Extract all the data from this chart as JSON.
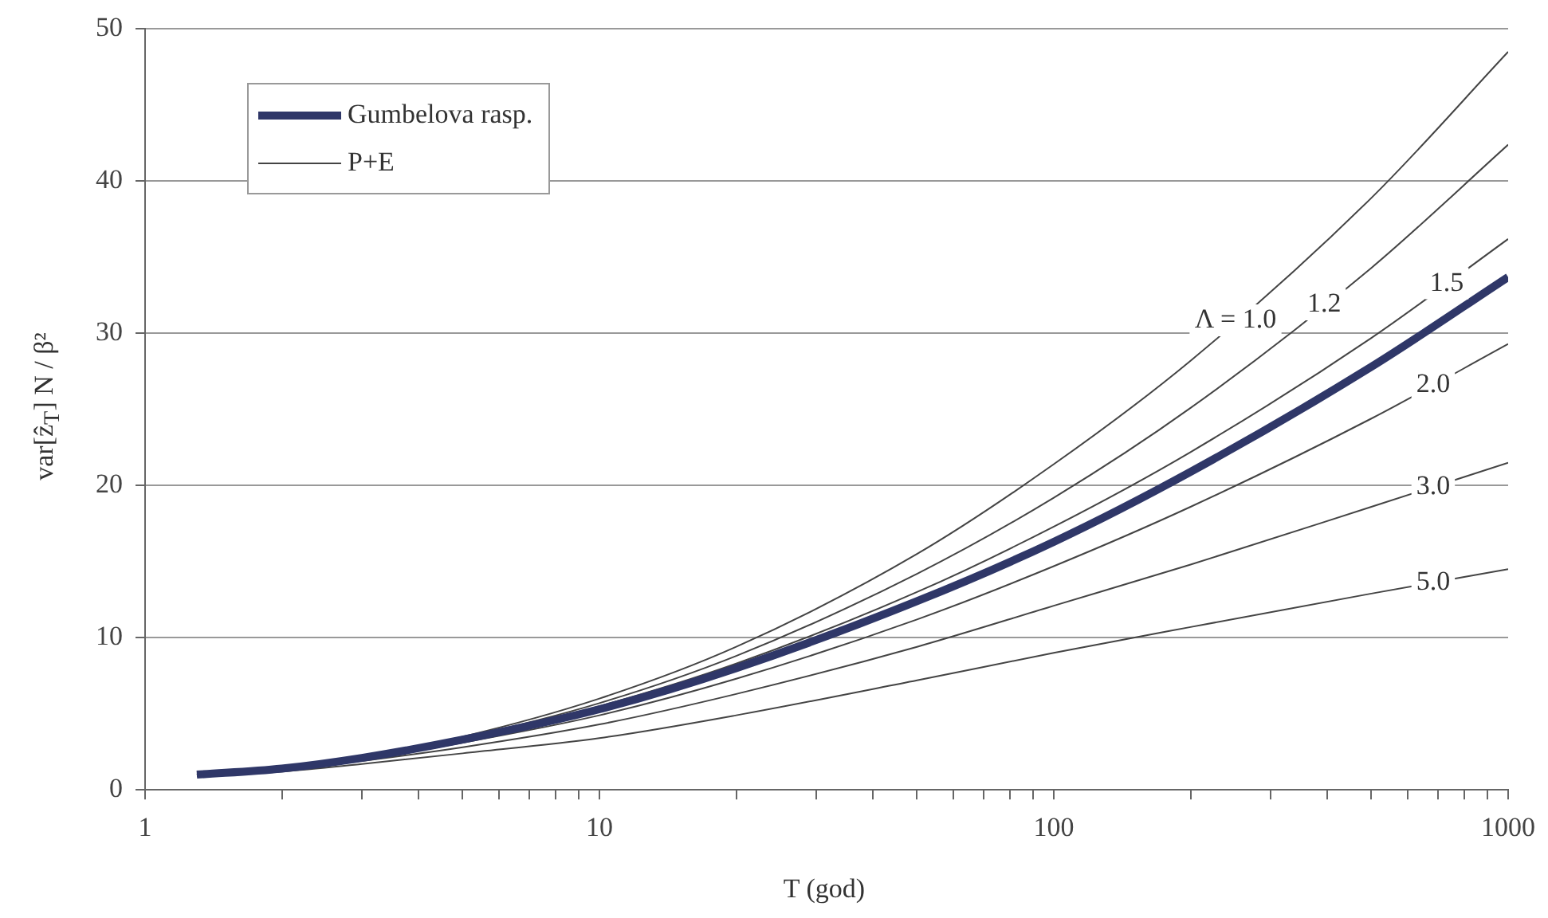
{
  "chart_data": {
    "type": "line",
    "xlabel": "T (god)",
    "ylabel": "var[ẑ$_{T}$] N / β²",
    "log": "x",
    "xlim": [
      1,
      1000
    ],
    "ylim": [
      0,
      50
    ],
    "xticks": [
      1,
      {
        "value": 2,
        "label": null
      },
      {
        "value": 3,
        "label": null
      },
      {
        "value": 4,
        "label": null
      },
      {
        "value": 5,
        "label": null
      },
      {
        "value": 6,
        "label": null
      },
      {
        "value": 7,
        "label": null
      },
      {
        "value": 8,
        "label": null
      },
      {
        "value": 9,
        "label": null
      },
      10,
      {
        "value": 20,
        "label": null
      },
      {
        "value": 30,
        "label": null
      },
      {
        "value": 40,
        "label": null
      },
      {
        "value": 50,
        "label": null
      },
      {
        "value": 60,
        "label": null
      },
      {
        "value": 70,
        "label": null
      },
      {
        "value": 80,
        "label": null
      },
      {
        "value": 90,
        "label": null
      },
      100,
      {
        "value": 200,
        "label": null
      },
      {
        "value": 300,
        "label": null
      },
      {
        "value": 400,
        "label": null
      },
      {
        "value": 500,
        "label": null
      },
      {
        "value": 600,
        "label": null
      },
      {
        "value": 700,
        "label": null
      },
      {
        "value": 800,
        "label": null
      },
      {
        "value": 900,
        "label": null
      },
      1000
    ],
    "yticks": [
      0,
      10,
      20,
      30,
      40,
      50
    ],
    "grid": "y",
    "legend": "top left",
    "marker": "none",
    "line_style": "solid",
    "x": [
      1.3,
      2,
      3,
      5,
      10,
      20,
      50,
      100,
      200,
      500,
      1000
    ],
    "series": [
      {
        "name": "Gumbelova rasp.",
        "color": "#2f3768",
        "values": [
          1.0,
          1.4,
          2.1,
          3.3,
          5.3,
          8.0,
          12.4,
          16.3,
          20.9,
          27.8,
          33.7
        ]
      },
      {
        "name": "P+E",
        "color": "#444444",
        "values": [
          1.0,
          1.4,
          2.2,
          3.5,
          6.0,
          9.4,
          15.5,
          21.4,
          28.2,
          38.9,
          48.5
        ]
      },
      {
        "color": "#444444",
        "values": [
          1.0,
          1.4,
          2.1,
          3.4,
          5.7,
          8.8,
          14.2,
          19.2,
          25.1,
          34.3,
          42.4
        ]
      },
      {
        "color": "#444444",
        "values": [
          1.0,
          1.4,
          2.1,
          3.3,
          5.5,
          8.3,
          13.0,
          17.3,
          22.2,
          29.7,
          36.2
        ]
      },
      {
        "color": "#444444",
        "values": [
          1.0,
          1.4,
          2.0,
          3.1,
          4.9,
          7.3,
          11.2,
          14.7,
          18.6,
          24.4,
          29.3
        ]
      },
      {
        "color": "#444444",
        "values": [
          1.0,
          1.3,
          1.9,
          2.8,
          4.3,
          6.3,
          9.4,
          12.1,
          14.8,
          18.6,
          21.5
        ]
      },
      {
        "color": "#444444",
        "values": [
          0.9,
          1.2,
          1.7,
          2.4,
          3.4,
          4.9,
          7.2,
          9.0,
          10.7,
          12.9,
          14.5
        ]
      }
    ],
    "annotations": [
      "Λ = 1.0",
      "1.2",
      "1.5",
      "2.0",
      "3.0",
      "5.0"
    ]
  }
}
